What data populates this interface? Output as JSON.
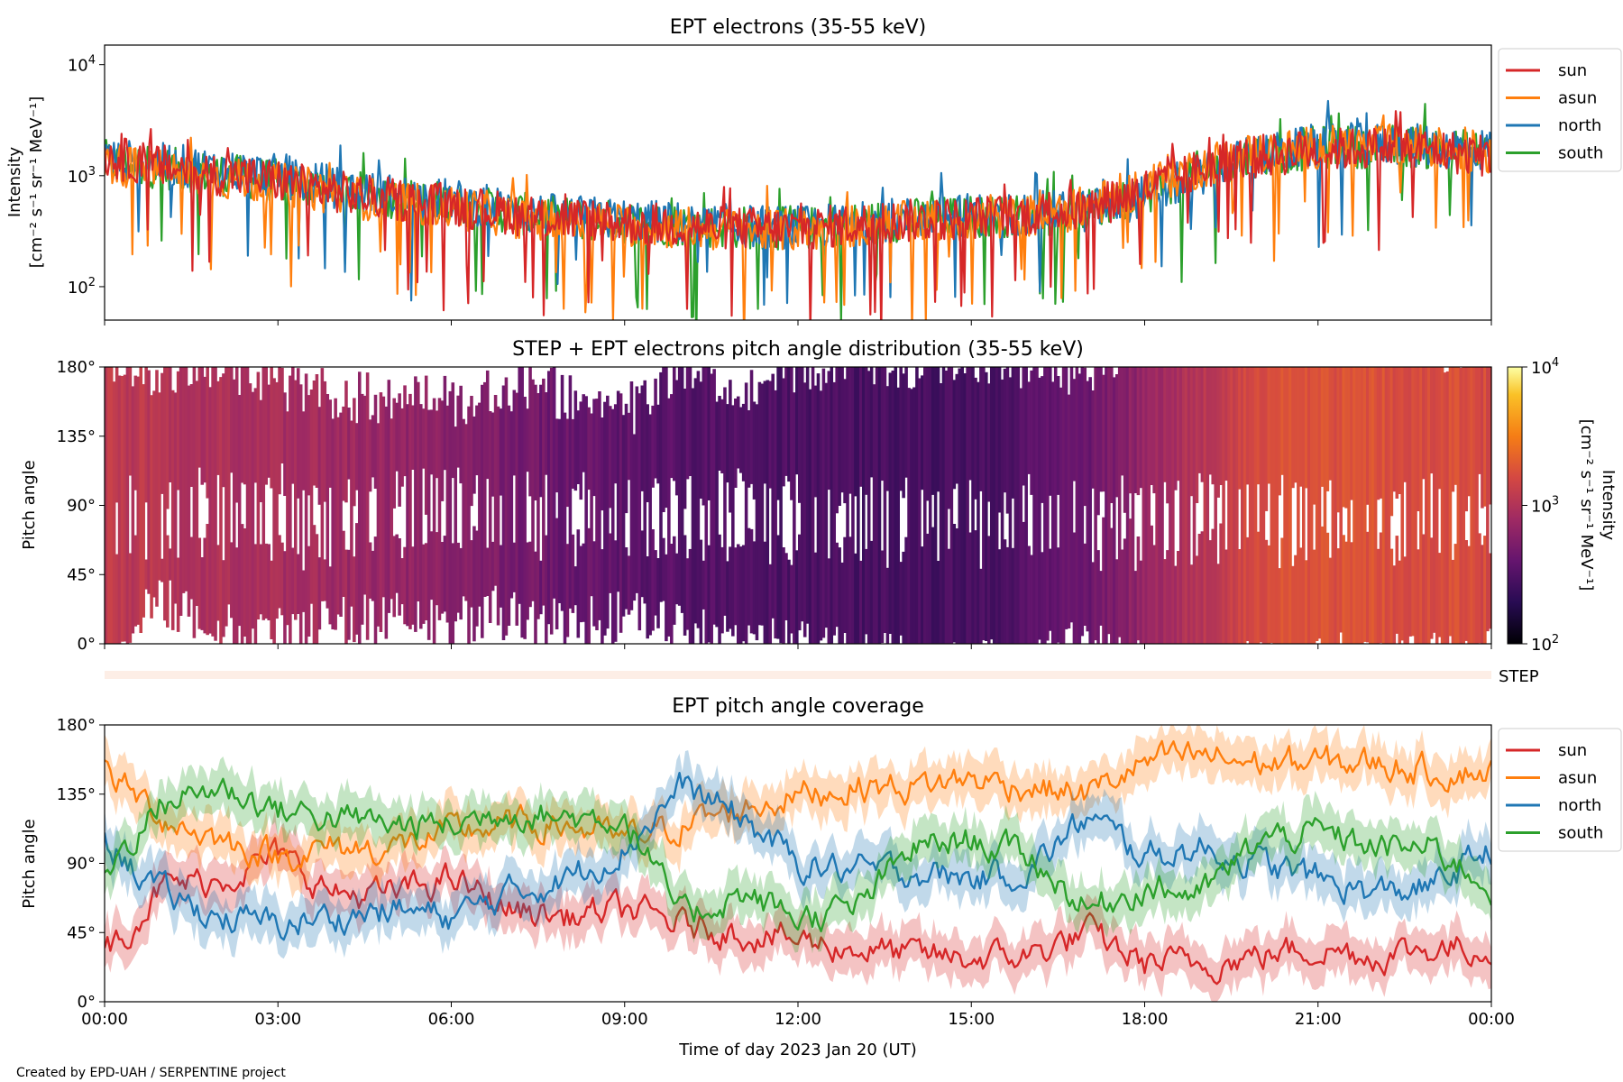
{
  "credit": "Created by EPD-UAH / SERPENTINE project",
  "colors": {
    "sun": "#d62728",
    "asun": "#ff7f0e",
    "north": "#1f77b4",
    "south": "#2ca02c",
    "step_band": "#fdeee6"
  },
  "chart_data": [
    {
      "type": "line",
      "title": "EPT electrons (35-55 keV)",
      "ylabel_line1": "Intensity",
      "ylabel_line2": "[cm⁻² s⁻¹ sr⁻¹ MeV⁻¹]",
      "yscale": "log",
      "ylim": [
        50,
        15000
      ],
      "yticks": [
        {
          "v": 100,
          "base": "10",
          "exp": "2"
        },
        {
          "v": 1000,
          "base": "10",
          "exp": "3"
        },
        {
          "v": 10000,
          "base": "10",
          "exp": "4"
        }
      ],
      "xlim": [
        0,
        24
      ],
      "legend_position": "outside-right-top",
      "series": [
        {
          "name": "sun",
          "color": "#d62728",
          "x": [
            0,
            1.5,
            3,
            4.5,
            6,
            7.5,
            9,
            10.5,
            12,
            13.5,
            15,
            16,
            17,
            18,
            19.5,
            21,
            22.5,
            24
          ],
          "y": [
            1500,
            1100,
            900,
            650,
            550,
            420,
            380,
            340,
            330,
            380,
            420,
            450,
            500,
            750,
            1400,
            1700,
            1800,
            1500
          ]
        },
        {
          "name": "asun",
          "color": "#ff7f0e",
          "x": [
            0,
            1.5,
            3,
            4.5,
            6,
            7.5,
            9,
            10.5,
            12,
            13.5,
            15,
            16,
            17,
            18,
            19.5,
            21,
            22.5,
            24
          ],
          "y": [
            1300,
            1000,
            850,
            620,
            520,
            400,
            360,
            330,
            320,
            370,
            400,
            430,
            520,
            800,
            1500,
            1800,
            1900,
            1600
          ]
        },
        {
          "name": "north",
          "color": "#1f77b4",
          "x": [
            0,
            1.5,
            3,
            4.5,
            6,
            7.5,
            9,
            10.5,
            12,
            13.5,
            15,
            16,
            17,
            18,
            19.5,
            21,
            22.5,
            24
          ],
          "y": [
            1400,
            1200,
            1000,
            700,
            600,
            450,
            400,
            360,
            340,
            400,
            450,
            460,
            480,
            650,
            1300,
            1900,
            1900,
            1700
          ]
        },
        {
          "name": "south",
          "color": "#2ca02c",
          "x": [
            0,
            1.5,
            3,
            4.5,
            6,
            7.5,
            9,
            10.5,
            12,
            13.5,
            15,
            16,
            17,
            18,
            19.5,
            21,
            22.5,
            24
          ],
          "y": [
            1350,
            1100,
            900,
            680,
            560,
            430,
            380,
            350,
            330,
            390,
            430,
            440,
            470,
            700,
            1400,
            1800,
            1850,
            1600
          ]
        }
      ]
    },
    {
      "type": "heatmap",
      "title": "STEP + EPT electrons pitch angle distribution (35-55 keV)",
      "ylabel": "Pitch angle",
      "ylim": [
        0,
        180
      ],
      "yticks": [
        0,
        45,
        90,
        135,
        180
      ],
      "ytick_labels": [
        "0°",
        "45°",
        "90°",
        "135°",
        "180°"
      ],
      "xlim": [
        0,
        24
      ],
      "colormap": "inferno",
      "colorbar_label_line1": "Intensity",
      "colorbar_label_line2": "[cm⁻² s⁻¹ sr⁻¹ MeV⁻¹]",
      "colorbar_scale": "log",
      "colorbar_range": [
        100,
        10000
      ],
      "colorbar_ticks": [
        {
          "v": 100,
          "base": "10",
          "exp": "2"
        },
        {
          "v": 1000,
          "base": "10",
          "exp": "3"
        },
        {
          "v": 10000,
          "base": "10",
          "exp": "4"
        }
      ],
      "time_profile_hours": [
        0,
        2,
        4,
        6,
        8,
        10,
        12,
        14,
        15.5,
        17,
        18.5,
        20,
        22,
        24
      ],
      "time_profile_intensity": [
        1200,
        950,
        800,
        600,
        420,
        330,
        300,
        280,
        300,
        420,
        900,
        1700,
        1800,
        1600
      ]
    },
    {
      "type": "band",
      "label": "STEP"
    },
    {
      "type": "line",
      "title": "EPT pitch angle coverage",
      "ylabel": "Pitch angle",
      "xlabel": "Time of day 2023 Jan 20 (UT)",
      "ylim": [
        0,
        180
      ],
      "yticks": [
        0,
        45,
        90,
        135,
        180
      ],
      "ytick_labels": [
        "0°",
        "45°",
        "90°",
        "135°",
        "180°"
      ],
      "xlim": [
        0,
        24
      ],
      "xticks": [
        0,
        3,
        6,
        9,
        12,
        15,
        18,
        21,
        24
      ],
      "xtick_labels": [
        "00:00",
        "03:00",
        "06:00",
        "09:00",
        "12:00",
        "15:00",
        "18:00",
        "21:00",
        "00:00"
      ],
      "legend_position": "outside-right-top",
      "series": [
        {
          "name": "sun",
          "color": "#d62728",
          "x": [
            0,
            1,
            2,
            3,
            4,
            5,
            6,
            7,
            8,
            9,
            10,
            11,
            12,
            13,
            14,
            15,
            16,
            17,
            18,
            19,
            20,
            21,
            22,
            23,
            24
          ],
          "y": [
            30,
            75,
            80,
            95,
            70,
            70,
            80,
            60,
            55,
            60,
            50,
            45,
            40,
            35,
            30,
            28,
            30,
            45,
            25,
            25,
            30,
            35,
            30,
            35,
            35
          ]
        },
        {
          "name": "asun",
          "color": "#ff7f0e",
          "x": [
            0,
            1,
            2,
            3,
            4,
            5,
            6,
            7,
            8,
            9,
            10,
            11,
            12,
            13,
            14,
            15,
            16,
            17,
            18,
            19,
            20,
            21,
            22,
            23,
            24
          ],
          "y": [
            150,
            120,
            105,
            95,
            100,
            100,
            110,
            115,
            115,
            105,
            115,
            125,
            135,
            140,
            140,
            145,
            140,
            135,
            155,
            160,
            155,
            155,
            155,
            150,
            150
          ]
        },
        {
          "name": "north",
          "color": "#1f77b4",
          "x": [
            0,
            1,
            2,
            3,
            4,
            5,
            6,
            7,
            8,
            9,
            10,
            11,
            12,
            13,
            14,
            15,
            16,
            17,
            18,
            19,
            20,
            21,
            22,
            23,
            24
          ],
          "y": [
            105,
            70,
            55,
            50,
            55,
            60,
            55,
            70,
            80,
            100,
            140,
            120,
            90,
            85,
            85,
            80,
            85,
            120,
            95,
            100,
            90,
            80,
            70,
            75,
            100
          ]
        },
        {
          "name": "south",
          "color": "#2ca02c",
          "x": [
            0,
            1,
            2,
            3,
            4,
            5,
            6,
            7,
            8,
            9,
            10,
            11,
            12,
            13,
            14,
            15,
            16,
            17,
            18,
            19,
            20,
            21,
            22,
            23,
            24
          ],
          "y": [
            85,
            130,
            140,
            125,
            120,
            115,
            115,
            125,
            120,
            120,
            55,
            70,
            55,
            60,
            100,
            105,
            95,
            60,
            75,
            70,
            105,
            110,
            100,
            100,
            75
          ]
        }
      ]
    }
  ]
}
